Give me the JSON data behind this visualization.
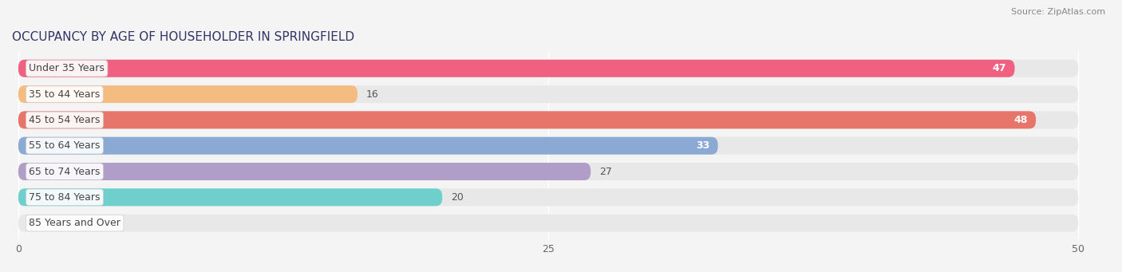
{
  "title": "OCCUPANCY BY AGE OF HOUSEHOLDER IN SPRINGFIELD",
  "source": "Source: ZipAtlas.com",
  "categories": [
    "Under 35 Years",
    "35 to 44 Years",
    "45 to 54 Years",
    "55 to 64 Years",
    "65 to 74 Years",
    "75 to 84 Years",
    "85 Years and Over"
  ],
  "values": [
    47,
    16,
    48,
    33,
    27,
    20,
    0
  ],
  "bar_colors": [
    "#F06080",
    "#F5BC82",
    "#E8756A",
    "#8AAAD4",
    "#B09DC8",
    "#6ECFCC",
    "#C0BEDE"
  ],
  "xlim_max": 50,
  "xticks": [
    0,
    25,
    50
  ],
  "background_color": "#f4f4f4",
  "bar_bg_color": "#e8e8e8",
  "title_fontsize": 11,
  "source_fontsize": 8,
  "label_fontsize": 9,
  "value_fontsize": 9
}
